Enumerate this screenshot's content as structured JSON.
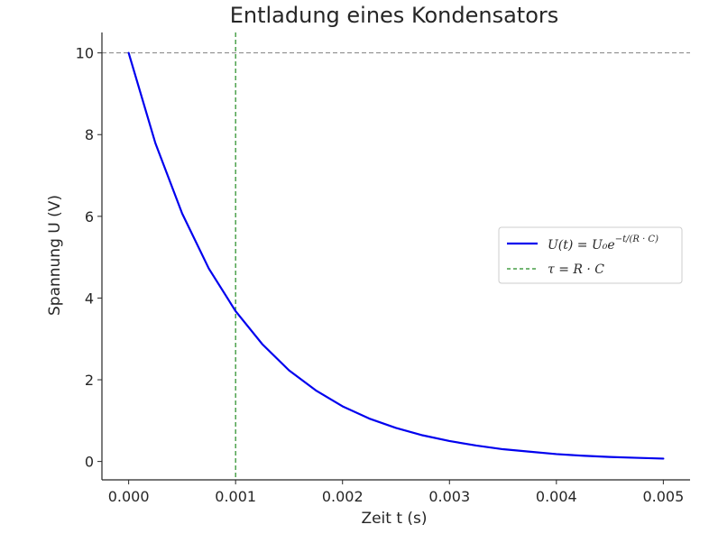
{
  "chart_data": {
    "type": "line",
    "title": "Entladung eines Kondensators",
    "xlabel": "Zeit t (s)",
    "ylabel": "Spannung U (V)",
    "xlim": [
      -0.00025,
      0.00525
    ],
    "ylim": [
      -0.45,
      10.5
    ],
    "x_ticks": [
      "0.000",
      "0.001",
      "0.002",
      "0.003",
      "0.004",
      "0.005"
    ],
    "x_tick_values": [
      0,
      0.001,
      0.002,
      0.003,
      0.004,
      0.005
    ],
    "y_ticks": [
      "0",
      "2",
      "4",
      "6",
      "8",
      "10"
    ],
    "y_tick_values": [
      0,
      2,
      4,
      6,
      8,
      10
    ],
    "series": [
      {
        "name": "U(t) = U₀e^(−t/(R·C))",
        "color": "#0000ee",
        "style": "solid",
        "x": [
          0,
          0.00025,
          0.0005,
          0.00075,
          0.001,
          0.00125,
          0.0015,
          0.00175,
          0.002,
          0.00225,
          0.0025,
          0.00275,
          0.003,
          0.00325,
          0.0035,
          0.00375,
          0.004,
          0.00425,
          0.0045,
          0.00475,
          0.005
        ],
        "y": [
          10,
          7.79,
          6.07,
          4.72,
          3.68,
          2.87,
          2.23,
          1.74,
          1.35,
          1.05,
          0.82,
          0.64,
          0.5,
          0.39,
          0.3,
          0.24,
          0.18,
          0.14,
          0.11,
          0.09,
          0.07
        ]
      }
    ],
    "reference_lines": [
      {
        "name": "τ = R·C",
        "orientation": "vertical",
        "value": 0.001,
        "color": "#228b22",
        "style": "dashed"
      },
      {
        "name": "",
        "orientation": "horizontal",
        "value": 10,
        "color": "#808080",
        "style": "dashed"
      }
    ],
    "legend": {
      "position": "right",
      "entries": [
        {
          "label": "U(t) = U₀e",
          "sup": "−t/(R · C)",
          "color": "#0000ee",
          "style": "solid"
        },
        {
          "label": "τ = R · C",
          "sup": "",
          "color": "#228b22",
          "style": "dashed"
        }
      ]
    },
    "grid": false
  }
}
